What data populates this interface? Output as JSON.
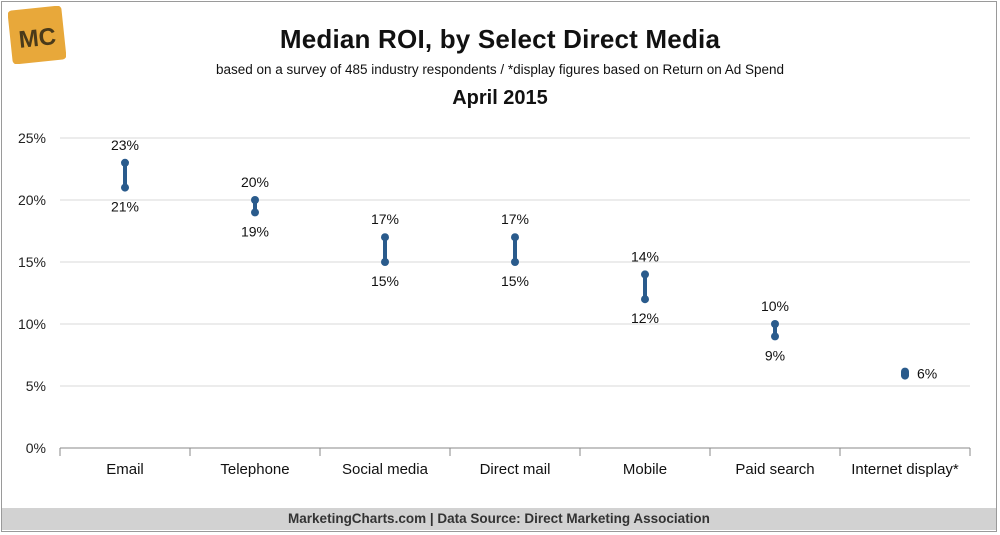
{
  "logo": {
    "text": "MC",
    "color": "#e8a83a"
  },
  "header": {
    "title": "Median ROI, by Select Direct Media",
    "subtitle": "based on a survey of 485 industry respondents / *display figures based on Return on Ad Spend",
    "date": "April 2015"
  },
  "footer": {
    "text": "MarketingCharts.com | Data Source: Direct Marketing Association"
  },
  "colors": {
    "series": "#2a5b8c",
    "grid": "#d9d9d9",
    "axis": "#888888"
  },
  "chart_data": {
    "type": "range",
    "categories": [
      "Email",
      "Telephone",
      "Social media",
      "Direct mail",
      "Mobile",
      "Paid search",
      "Internet display*"
    ],
    "high": [
      23,
      20,
      17,
      17,
      14,
      10,
      6
    ],
    "low": [
      21,
      19,
      15,
      15,
      12,
      9,
      6
    ],
    "high_labels": [
      "23%",
      "20%",
      "17%",
      "17%",
      "14%",
      "10%",
      "6%"
    ],
    "low_labels": [
      "21%",
      "19%",
      "15%",
      "15%",
      "12%",
      "9%",
      ""
    ],
    "ylim": [
      0,
      25
    ],
    "yticks": [
      "0%",
      "5%",
      "10%",
      "15%",
      "20%",
      "25%"
    ],
    "grid": true,
    "legend": "none"
  }
}
